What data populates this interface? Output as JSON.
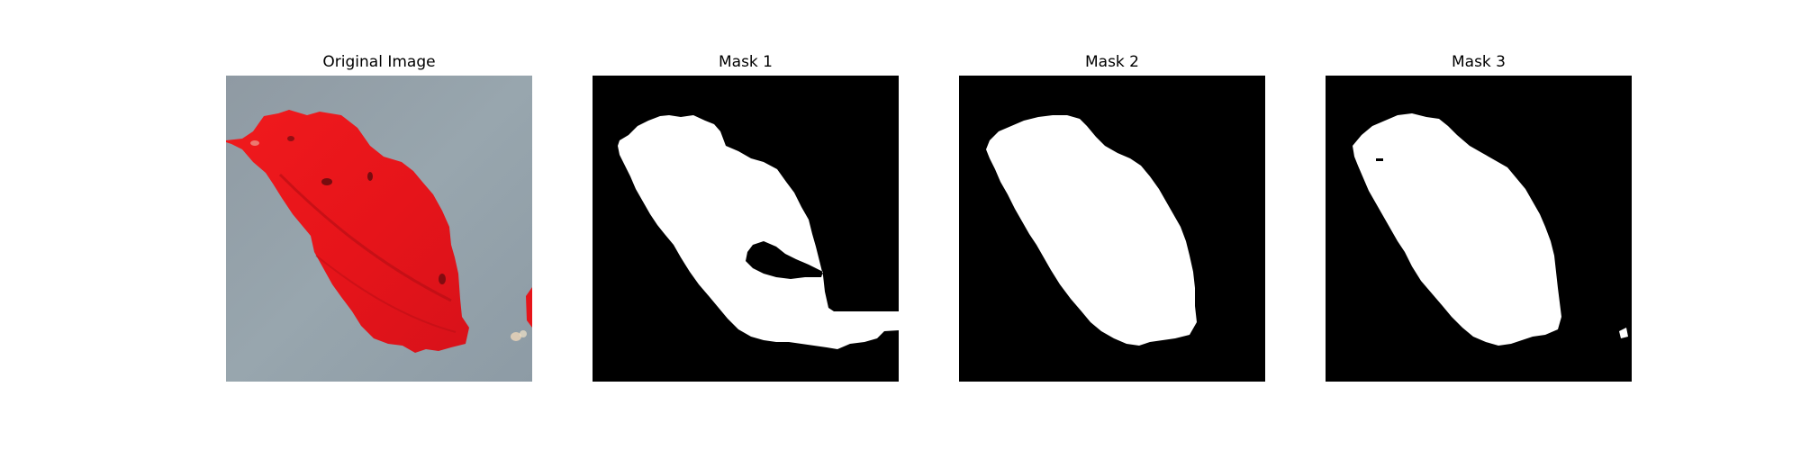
{
  "figure": {
    "panels": [
      {
        "id": "original",
        "title": "Original Image"
      },
      {
        "id": "mask_1",
        "title": "Mask 1"
      },
      {
        "id": "mask_2",
        "title": "Mask 2"
      },
      {
        "id": "mask_3",
        "title": "Mask 3"
      }
    ]
  },
  "colors": {
    "background_gray": "#93a0a9",
    "leaf_red": "#e8131a",
    "leaf_dark_red": "#a30a10",
    "mask_foreground": "#ffffff",
    "mask_background": "#000000"
  }
}
